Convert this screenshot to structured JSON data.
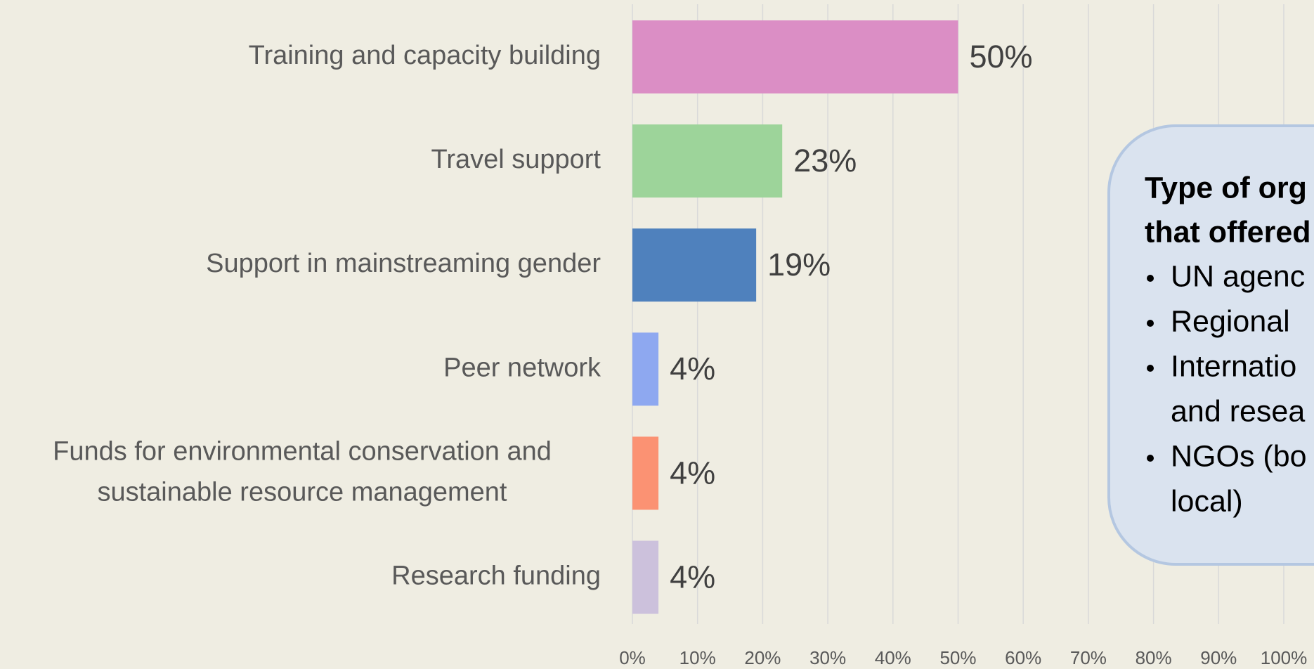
{
  "chart_data": {
    "type": "hbar",
    "categories": [
      "Training and capacity building",
      "Travel support",
      "Support in mainstreaming gender",
      "Peer network",
      "Funds for environmental conservation and\nsustainable resource management",
      "Research funding"
    ],
    "values": [
      50,
      23,
      19,
      4,
      4,
      4
    ],
    "value_labels": [
      "50%",
      "23%",
      "19%",
      "4%",
      "4%",
      "4%"
    ],
    "colors": [
      "#db8ec5",
      "#9dd49a",
      "#4f81bd",
      "#8ea8f0",
      "#fb9273",
      "#ccc1dc"
    ],
    "xlim": [
      0,
      100
    ],
    "xticks": [
      {
        "value": 0,
        "label": "0%"
      },
      {
        "value": 10,
        "label": "10%"
      },
      {
        "value": 20,
        "label": "20%"
      },
      {
        "value": 30,
        "label": "30%"
      },
      {
        "value": 40,
        "label": "40%"
      },
      {
        "value": 50,
        "label": "50%"
      },
      {
        "value": 60,
        "label": "60%"
      },
      {
        "value": 70,
        "label": "70%"
      },
      {
        "value": 80,
        "label": "80%"
      },
      {
        "value": 90,
        "label": "90%"
      },
      {
        "value": 100,
        "label": "100%"
      }
    ],
    "grid": true,
    "text_box": {
      "title_lines": [
        "Type of org",
        "that offered"
      ],
      "items": [
        [
          "UN agenc"
        ],
        [
          "Regional"
        ],
        [
          "Internatio",
          "and resea"
        ],
        [
          "NGOs (bo",
          "local)"
        ]
      ]
    }
  }
}
